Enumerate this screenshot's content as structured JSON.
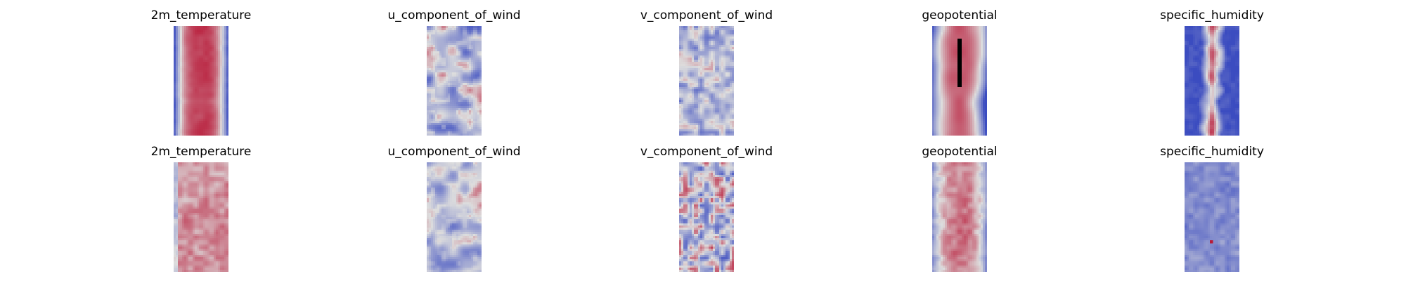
{
  "colormap": {
    "name": "coolwarm",
    "low": "#3b4cc0",
    "mid": "#dddddd",
    "high": "#b40426"
  },
  "chart_data": [
    {
      "type": "heatmap",
      "row": 1,
      "col": 1,
      "title": "2m_temperature",
      "pattern": "warm central band with cool edges",
      "grid": false
    },
    {
      "type": "heatmap",
      "row": 1,
      "col": 2,
      "title": "u_component_of_wind",
      "pattern": "light blue field with thin red streaks",
      "grid": false
    },
    {
      "type": "heatmap",
      "row": 1,
      "col": 3,
      "title": "v_component_of_wind",
      "pattern": "pale blue field with scattered small warm spots",
      "grid": false
    },
    {
      "type": "heatmap",
      "row": 1,
      "col": 4,
      "title": "geopotential",
      "pattern": "warm central band with blue wavy edges",
      "grid": false
    },
    {
      "type": "heatmap",
      "row": 1,
      "col": 5,
      "title": "specific_humidity",
      "pattern": "dark blue edges with narrow red central core",
      "grid": false
    },
    {
      "type": "heatmap",
      "row": 2,
      "col": 1,
      "title": "2m_temperature",
      "pattern": "light red noisy field with slight blue left edge",
      "grid": false
    },
    {
      "type": "heatmap",
      "row": 2,
      "col": 2,
      "title": "u_component_of_wind",
      "pattern": "light blue field with sparse red streaks",
      "grid": false
    },
    {
      "type": "heatmap",
      "row": 2,
      "col": 3,
      "title": "v_component_of_wind",
      "pattern": "mixed blue and red small-scale speckles",
      "grid": false
    },
    {
      "type": "heatmap",
      "row": 2,
      "col": 4,
      "title": "geopotential",
      "pattern": "warm noisy field with light blue edges",
      "grid": false
    },
    {
      "type": "heatmap",
      "row": 2,
      "col": 5,
      "title": "specific_humidity",
      "pattern": "uniform medium blue noisy field with small red dot",
      "grid": false
    }
  ]
}
